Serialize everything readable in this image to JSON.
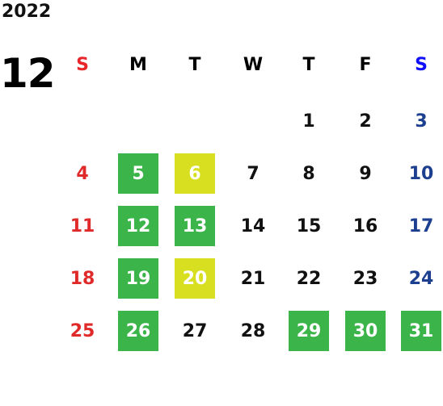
{
  "calendar": {
    "year": "2022",
    "month": "12",
    "weekdays": [
      {
        "label": "S",
        "color": "#e8262a",
        "date_color": "#e02a2a"
      },
      {
        "label": "M",
        "color": "#000000",
        "date_color": "#111111"
      },
      {
        "label": "T",
        "color": "#000000",
        "date_color": "#111111"
      },
      {
        "label": "W",
        "color": "#000000",
        "date_color": "#111111"
      },
      {
        "label": "T",
        "color": "#000000",
        "date_color": "#111111"
      },
      {
        "label": "F",
        "color": "#000000",
        "date_color": "#111111"
      },
      {
        "label": "S",
        "color": "#1010ff",
        "date_color": "#1d3f8f"
      }
    ],
    "weeks": [
      [
        null,
        null,
        null,
        null,
        {
          "day": 1
        },
        {
          "day": 2
        },
        {
          "day": 3
        }
      ],
      [
        {
          "day": 4
        },
        {
          "day": 5,
          "fill": "#3bb54a"
        },
        {
          "day": 6,
          "fill": "#d8df20"
        },
        {
          "day": 7
        },
        {
          "day": 8
        },
        {
          "day": 9
        },
        {
          "day": 10
        }
      ],
      [
        {
          "day": 11
        },
        {
          "day": 12,
          "fill": "#3bb54a"
        },
        {
          "day": 13,
          "fill": "#3bb54a"
        },
        {
          "day": 14
        },
        {
          "day": 15
        },
        {
          "day": 16
        },
        {
          "day": 17
        }
      ],
      [
        {
          "day": 18
        },
        {
          "day": 19,
          "fill": "#3bb54a"
        },
        {
          "day": 20,
          "fill": "#d8df20"
        },
        {
          "day": 21
        },
        {
          "day": 22
        },
        {
          "day": 23
        },
        {
          "day": 24
        }
      ],
      [
        {
          "day": 25
        },
        {
          "day": 26,
          "fill": "#3bb54a"
        },
        {
          "day": 27
        },
        {
          "day": 28
        },
        {
          "day": 29,
          "fill": "#3bb54a"
        },
        {
          "day": 30,
          "fill": "#3bb54a"
        },
        {
          "day": 31,
          "fill": "#3bb54a"
        }
      ]
    ]
  }
}
